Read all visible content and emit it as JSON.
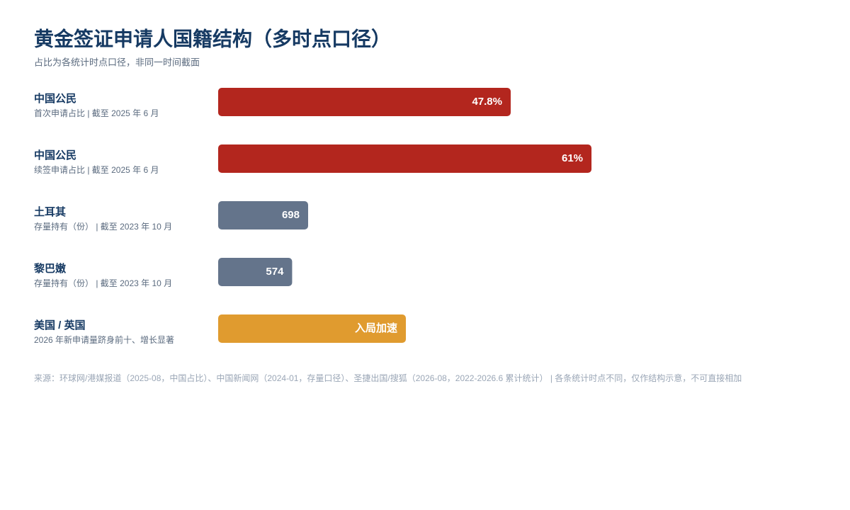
{
  "chart_data": {
    "type": "bar",
    "title": "黄金签证申请人国籍结构（多时点口径）",
    "subtitle": "占比为各统计时点口径，非同一时间截面",
    "categories": [
      "中国公民",
      "中国公民",
      "土耳其",
      "黎巴嫩",
      "美国 / 英国"
    ],
    "category_notes": [
      "首次申请占比 | 截至 2025 年 6 月",
      "续签申请占比 | 截至 2025 年 6 月",
      "存量持有（份） | 截至 2023 年 10 月",
      "存量持有（份） | 截至 2023 年 10 月",
      "2026 年新申请量跻身前十、增长显著"
    ],
    "values": [
      47.8,
      61,
      698,
      574,
      null
    ],
    "value_labels": [
      "47.8%",
      "61%",
      "698",
      "574",
      "入局加速"
    ],
    "colors": [
      "#b3261e",
      "#b3261e",
      "#64748b",
      "#64748b",
      "#e09b2f"
    ],
    "source": "来源：环球网/港媒报道（2025-08，中国占比）、中国新闻网（2024-01，存量口径）、圣捷出国/搜狐（2026-08，2022-2026.6 累计统计） | 各条统计时点不同，仅作结构示意，不可直接相加"
  }
}
